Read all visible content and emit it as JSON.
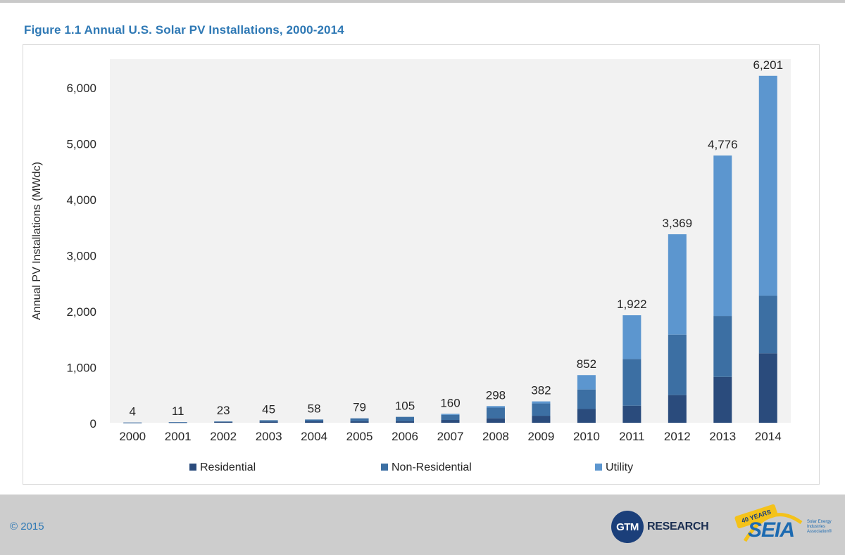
{
  "figure_title": "Figure 1.1  Annual U.S. Solar PV Installations, 2000-2014",
  "footer": {
    "copyright": "© 2015",
    "gtm_logo_mark": "GTM",
    "gtm_logo_text": "RESEARCH",
    "seia_logo_years": "40 YEARS",
    "seia_logo_word": "SEIA",
    "seia_logo_tagline": "Solar Energy Industries Association®"
  },
  "colors": {
    "residential": "#2a4b7c",
    "non_residential": "#3c6fa3",
    "utility": "#5c96cf",
    "plot_bg": "#f2f2f2",
    "title": "#2f79b5"
  },
  "chart_data": {
    "type": "bar",
    "stacked": true,
    "title": "Annual U.S. Solar PV Installations, 2000-2014",
    "xlabel": "",
    "ylabel": "Annual PV Installations (MWdc)",
    "ylim": [
      0,
      6500
    ],
    "yticks": [
      0,
      1000,
      2000,
      3000,
      4000,
      5000,
      6000
    ],
    "ytick_labels": [
      "0",
      "1,000",
      "2,000",
      "3,000",
      "4,000",
      "5,000",
      "6,000"
    ],
    "grid": false,
    "legend_position": "bottom",
    "categories": [
      "2000",
      "2001",
      "2002",
      "2003",
      "2004",
      "2005",
      "2006",
      "2007",
      "2008",
      "2009",
      "2010",
      "2011",
      "2012",
      "2013",
      "2014"
    ],
    "series": [
      {
        "name": "Residential",
        "values": [
          2,
          6,
          12,
          20,
          25,
          27,
          30,
          50,
          80,
          125,
          245,
          305,
          495,
          820,
          1240
        ]
      },
      {
        "name": "Non-Residential",
        "values": [
          2,
          5,
          11,
          25,
          33,
          52,
          75,
          90,
          190,
          220,
          350,
          835,
          1080,
          1090,
          1030
        ]
      },
      {
        "name": "Utility",
        "values": [
          0,
          0,
          0,
          0,
          0,
          0,
          0,
          20,
          28,
          37,
          257,
          782,
          1794,
          2866,
          3931
        ]
      }
    ],
    "totals": [
      4,
      11,
      23,
      45,
      58,
      79,
      105,
      160,
      298,
      382,
      852,
      1922,
      3369,
      4776,
      6201
    ],
    "total_labels": [
      "4",
      "11",
      "23",
      "45",
      "58",
      "79",
      "105",
      "160",
      "298",
      "382",
      "852",
      "1,922",
      "3,369",
      "4,776",
      "6,201"
    ]
  }
}
